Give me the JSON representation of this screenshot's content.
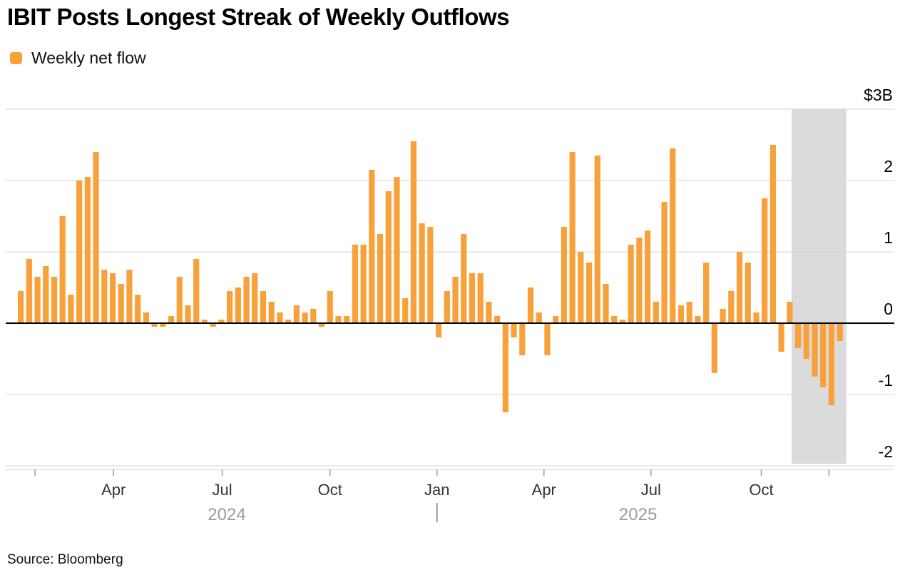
{
  "title": "IBIT Posts Longest Streak of Weekly Outflows",
  "legend": {
    "label": "Weekly net flow",
    "swatch_color": "#F8A13A"
  },
  "source": "Source: Bloomberg",
  "chart_data": {
    "type": "bar",
    "title": "IBIT Posts Longest Streak of Weekly Outflows",
    "legend_entries": [
      "Weekly net flow"
    ],
    "legend_position": "top-left",
    "grid": true,
    "y_axis": {
      "top_label": "$3B",
      "ticks": [
        3,
        2,
        1,
        0,
        -1,
        -2
      ],
      "range": [
        -2.35,
        3
      ],
      "unit": "$B"
    },
    "x_axis": {
      "ticks": [
        {
          "index": 1.7,
          "label": ""
        },
        {
          "index": 11.1,
          "label": "Apr"
        },
        {
          "index": 24.1,
          "label": "Jul"
        },
        {
          "index": 37.0,
          "label": "Oct"
        },
        {
          "index": 49.8,
          "label": "Jan"
        },
        {
          "index": 62.6,
          "label": "Apr"
        },
        {
          "index": 75.4,
          "label": "Jul"
        },
        {
          "index": 88.6,
          "label": "Oct"
        },
        {
          "index": 96.7,
          "label": ""
        }
      ],
      "year_labels": [
        {
          "index": 25.0,
          "label": "2024"
        },
        {
          "index": 74.2,
          "label": "2025"
        }
      ],
      "year_divider_index": 49.8
    },
    "series": [
      {
        "name": "Weekly net flow",
        "values": [
          0.45,
          0.9,
          0.65,
          0.8,
          0.65,
          1.5,
          0.4,
          2.0,
          2.05,
          2.4,
          0.75,
          0.7,
          0.55,
          0.75,
          0.4,
          0.15,
          -0.05,
          -0.05,
          0.1,
          0.65,
          0.25,
          0.9,
          0.05,
          -0.05,
          0.05,
          0.45,
          0.5,
          0.65,
          0.7,
          0.45,
          0.3,
          0.15,
          0.05,
          0.25,
          0.15,
          0.2,
          -0.05,
          0.45,
          0.1,
          0.1,
          1.1,
          1.1,
          2.15,
          1.25,
          1.85,
          2.05,
          0.35,
          2.55,
          1.4,
          1.35,
          -0.2,
          0.45,
          0.65,
          1.25,
          0.7,
          0.7,
          0.3,
          0.1,
          -1.25,
          -0.2,
          -0.45,
          0.5,
          0.15,
          -0.45,
          0.1,
          1.35,
          2.4,
          1.0,
          0.85,
          2.35,
          0.55,
          0.1,
          0.05,
          1.1,
          1.2,
          1.3,
          0.3,
          1.7,
          2.45,
          0.25,
          0.3,
          0.1,
          0.85,
          -0.7,
          0.2,
          0.45,
          1.0,
          0.85,
          0.15,
          1.75,
          2.5,
          -0.4,
          0.3,
          -0.35,
          -0.5,
          -0.75,
          -0.9,
          -1.15,
          -0.25
        ]
      }
    ],
    "highlight_region": {
      "start_index": 93,
      "end_index": 98,
      "color": "#DBDBDB"
    },
    "colors": {
      "bar": "#F8A13A",
      "highlight": "#DBDBDB",
      "gridline": "#D6D6D6",
      "zero_line": "#000000"
    }
  }
}
